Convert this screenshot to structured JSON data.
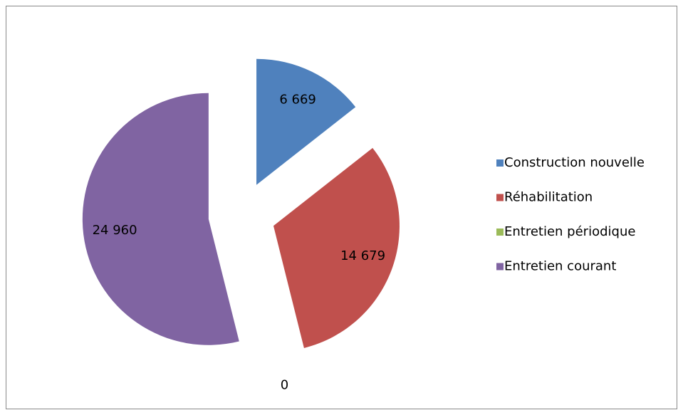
{
  "chart_data": {
    "type": "pie",
    "categories": [
      "Construction nouvelle",
      "Réhabilitation",
      "Entretien périodique",
      "Entretien courant"
    ],
    "values": [
      6669,
      14679,
      0,
      24960
    ],
    "value_labels": [
      "6 669",
      "14 679",
      "0",
      "24 960"
    ],
    "colors": [
      "#4f81bd",
      "#c0504d",
      "#9bbb59",
      "#8064a2"
    ],
    "exploded": true,
    "legend": "right"
  }
}
